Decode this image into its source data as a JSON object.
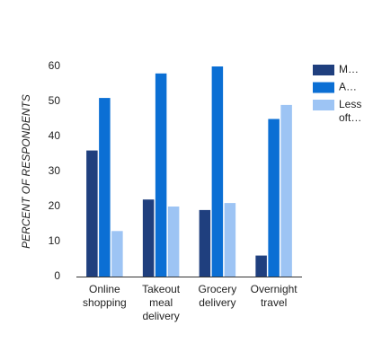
{
  "chart_data": {
    "type": "bar",
    "y_label": "PERCENT OF RESPONDENTS",
    "categories": [
      "Online shopping",
      "Takeout meal delivery",
      "Grocery delivery",
      "Overnight travel"
    ],
    "series": [
      {
        "name": "M…",
        "color": "#1f3f7e",
        "values": [
          36,
          22,
          19,
          6
        ]
      },
      {
        "name": "A…",
        "color": "#0b6fd4",
        "values": [
          51,
          58,
          60,
          45
        ]
      },
      {
        "name": "Less oft…",
        "color": "#9dc4f4",
        "values": [
          13,
          20,
          21,
          49
        ]
      }
    ],
    "ylim": [
      0,
      60
    ],
    "yticks": [
      0,
      10,
      20,
      30,
      40,
      50,
      60
    ],
    "grid": false,
    "legend": "right"
  }
}
